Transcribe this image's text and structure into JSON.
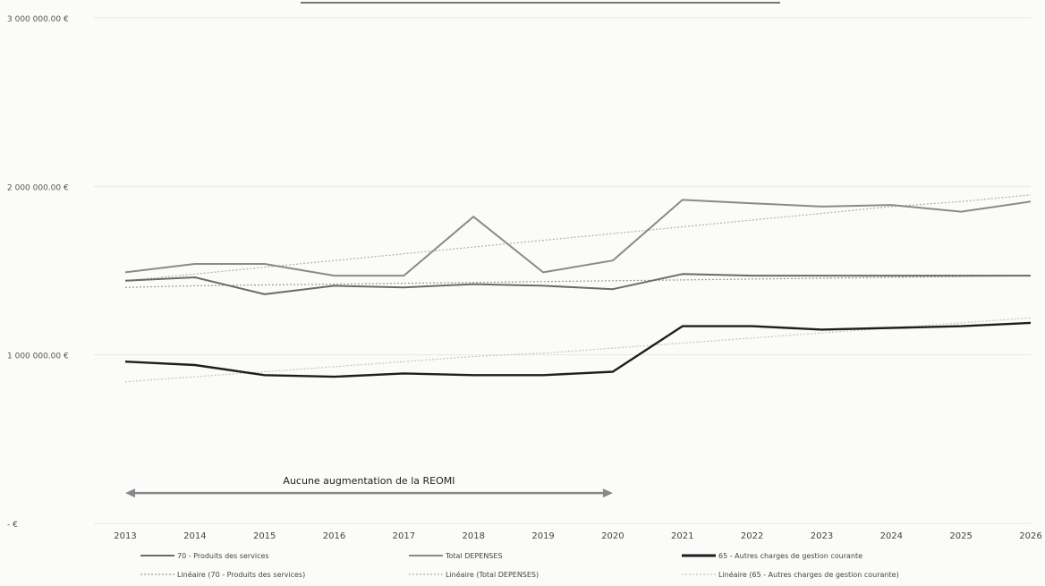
{
  "chart_data": {
    "type": "line",
    "x": [
      "2013",
      "2014",
      "2015",
      "2016",
      "2017",
      "2018",
      "2019",
      "2020",
      "2021",
      "2022",
      "2023",
      "2024",
      "2025",
      "2026"
    ],
    "y_ticks": [
      {
        "value": 0,
        "label": "-   €"
      },
      {
        "value": 1000000,
        "label": "1 000 000.00 €"
      },
      {
        "value": 2000000,
        "label": "2 000 000.00 €"
      },
      {
        "value": 3000000,
        "label": "3 000 000.00 €"
      }
    ],
    "ylim": [
      0,
      3000000
    ],
    "grid": true,
    "legend_position": "bottom",
    "series": [
      {
        "name": "70 - Produits des services",
        "color": "#6a6a6a",
        "width": 2,
        "dash": "",
        "values": [
          1440000,
          1460000,
          1360000,
          1410000,
          1400000,
          1420000,
          1410000,
          1390000,
          1480000,
          1470000,
          1470000,
          1470000,
          1470000,
          1470000
        ]
      },
      {
        "name": "Total DEPENSES",
        "color": "#8a8a8a",
        "width": 2,
        "dash": "",
        "values": [
          1490000,
          1540000,
          1540000,
          1470000,
          1470000,
          1820000,
          1490000,
          1560000,
          1920000,
          1900000,
          1880000,
          1890000,
          1850000,
          1910000
        ]
      },
      {
        "name": "65 - Autres charges de gestion courante",
        "color": "#1e1e1e",
        "width": 2.4,
        "dash": "",
        "values": [
          960000,
          940000,
          880000,
          870000,
          890000,
          880000,
          880000,
          900000,
          1170000,
          1170000,
          1150000,
          1160000,
          1170000,
          1190000
        ]
      },
      {
        "name": "Linéaire (70 - Produits des services)",
        "color": "#9a9a9a",
        "width": 1.2,
        "dash": "2,2",
        "values": [
          1400000,
          1410000,
          1415000,
          1420000,
          1425000,
          1430000,
          1435000,
          1440000,
          1445000,
          1450000,
          1455000,
          1460000,
          1465000,
          1470000
        ]
      },
      {
        "name": "Linéaire (Total DEPENSES)",
        "color": "#b0b0b0",
        "width": 1.2,
        "dash": "2,2",
        "values": [
          1440000,
          1480000,
          1520000,
          1560000,
          1600000,
          1640000,
          1680000,
          1720000,
          1760000,
          1800000,
          1840000,
          1880000,
          1910000,
          1950000
        ]
      },
      {
        "name": "Linéaire (65 - Autres charges de gestion courante)",
        "color": "#c4c4c4",
        "width": 1.2,
        "dash": "2,2",
        "values": [
          840000,
          870000,
          900000,
          930000,
          960000,
          990000,
          1010000,
          1040000,
          1070000,
          1100000,
          1130000,
          1160000,
          1190000,
          1220000
        ]
      }
    ],
    "annotation": {
      "text": "Aucune augmentation de la REOMI",
      "from": "2013",
      "to": "2020",
      "y_value": 180000
    }
  }
}
